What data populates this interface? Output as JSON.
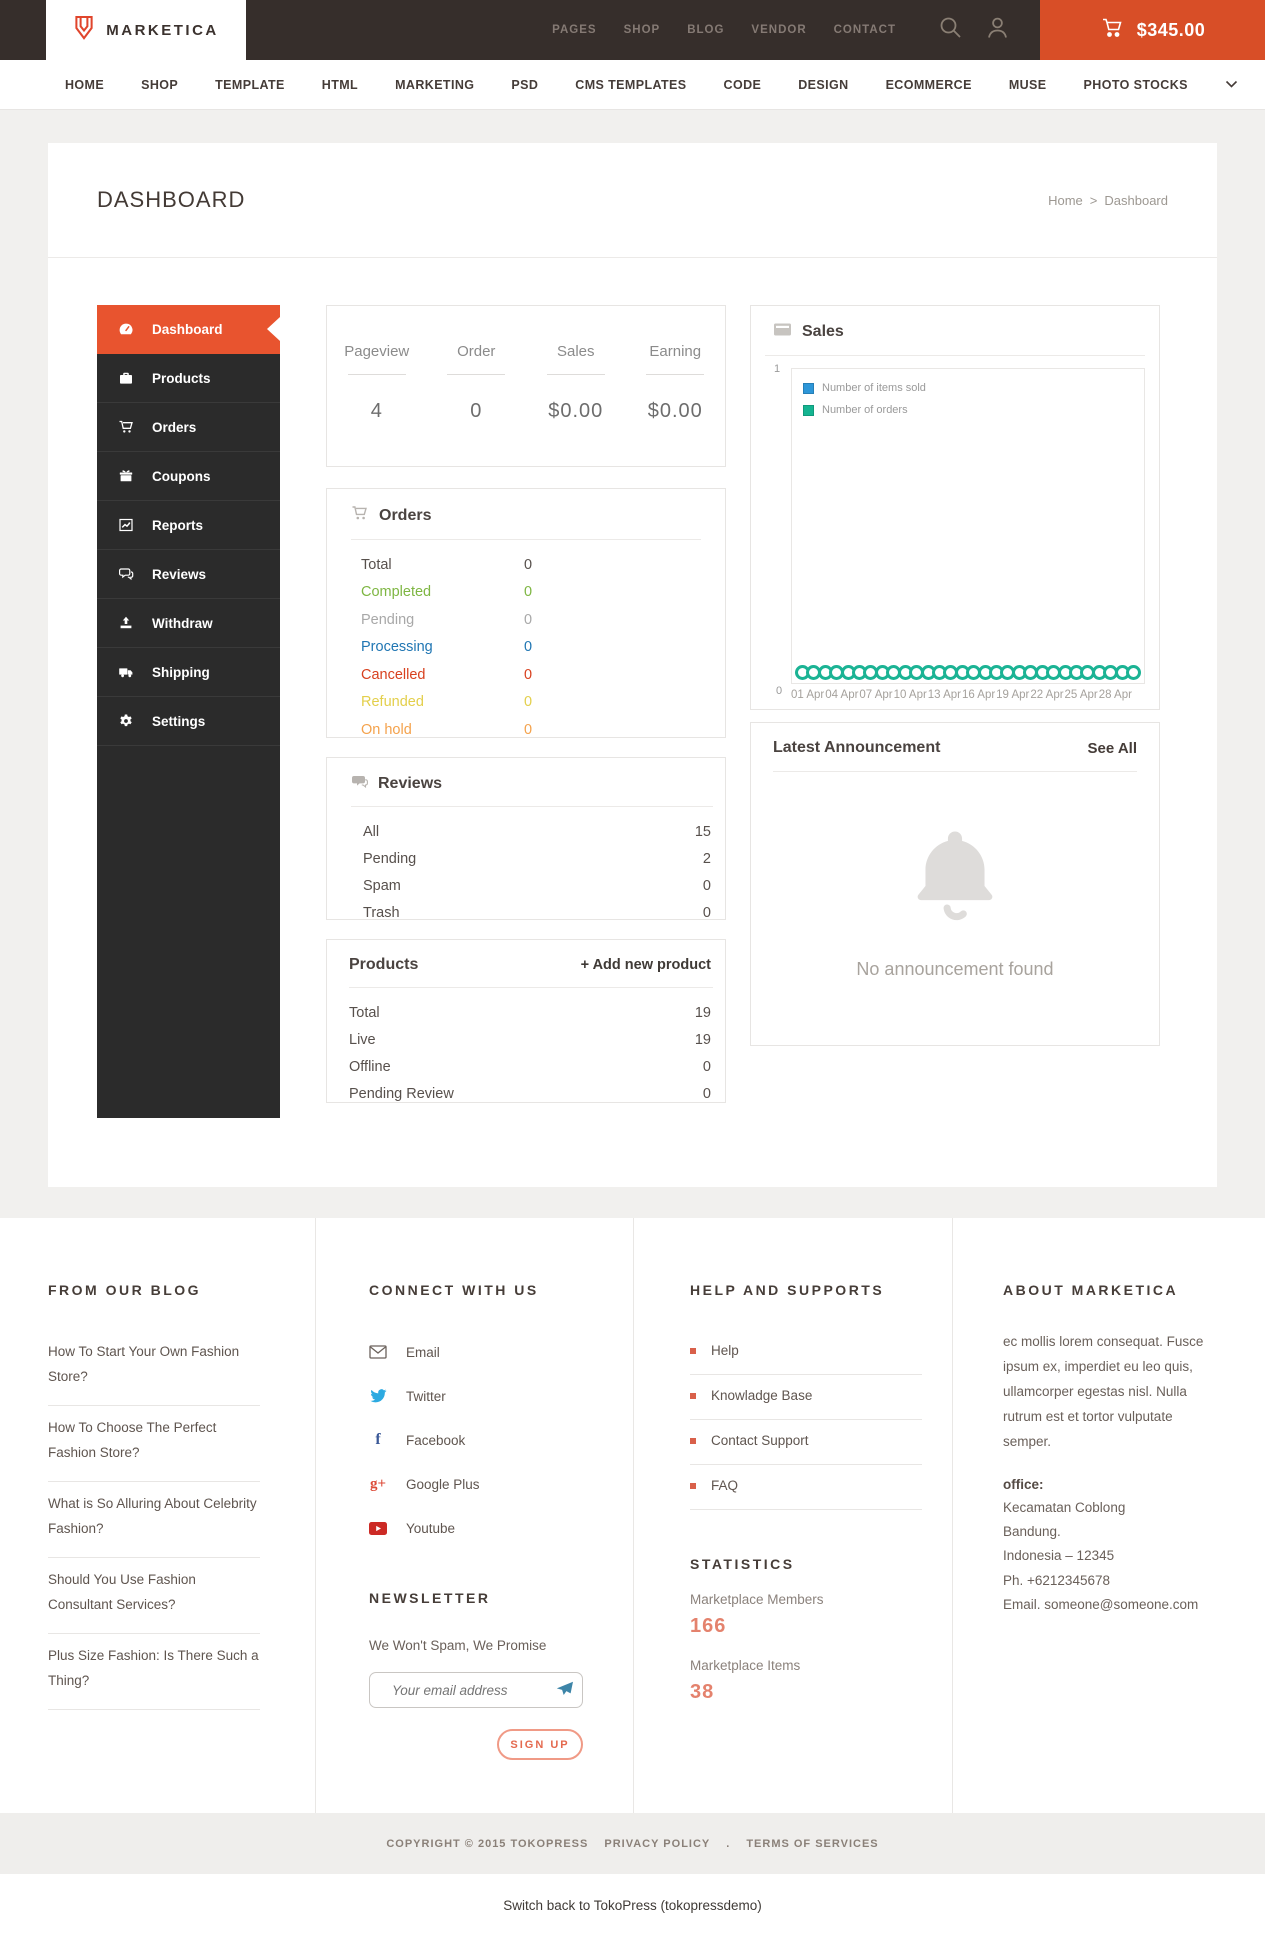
{
  "theme": {
    "header_bg": "#362e2b",
    "accent_orange": "#e8542f",
    "cart_red": "#d84e27",
    "sidebar_bg": "#2b2b2b",
    "page_bg": "#f1f0ee",
    "status_colors": {
      "total": "#57504c",
      "completed": "#7eb642",
      "pending": "#a8a8a8",
      "processing": "#2076b3",
      "cancelled": "#d8411f",
      "refunded": "#e3cf4b",
      "on_hold": "#f4a24c"
    },
    "legend_blue": "#2d96d8",
    "legend_teal": "#14b491",
    "salmon": "#e4826d"
  },
  "header": {
    "brand": "MARKETICA",
    "links": [
      {
        "label": "PAGES"
      },
      {
        "label": "SHOP"
      },
      {
        "label": "BLOG"
      },
      {
        "label": "VENDOR"
      },
      {
        "label": "CONTACT"
      }
    ],
    "cart_total": "$345.00"
  },
  "mainNav": {
    "items": [
      {
        "label": "HOME"
      },
      {
        "label": "SHOP"
      },
      {
        "label": "TEMPLATE"
      },
      {
        "label": "HTML"
      },
      {
        "label": "MARKETING"
      },
      {
        "label": "PSD"
      },
      {
        "label": "CMS TEMPLATES"
      },
      {
        "label": "CODE"
      },
      {
        "label": "DESIGN"
      },
      {
        "label": "ECOMMERCE"
      },
      {
        "label": "MUSE"
      },
      {
        "label": "PHOTO STOCKS"
      }
    ]
  },
  "page": {
    "title": "DASHBOARD",
    "breadcrumb": {
      "home": "Home",
      "separator": ">",
      "current": "Dashboard"
    }
  },
  "sidebar": {
    "items": [
      {
        "label": "Dashboard",
        "icon": "dashboard-icon",
        "active": true
      },
      {
        "label": "Products",
        "icon": "briefcase-icon"
      },
      {
        "label": "Orders",
        "icon": "cart-icon"
      },
      {
        "label": "Coupons",
        "icon": "gift-icon"
      },
      {
        "label": "Reports",
        "icon": "chart-icon"
      },
      {
        "label": "Reviews",
        "icon": "comments-icon"
      },
      {
        "label": "Withdraw",
        "icon": "upload-icon"
      },
      {
        "label": "Shipping",
        "icon": "truck-icon"
      },
      {
        "label": "Settings",
        "icon": "gear-icon"
      }
    ]
  },
  "stats": {
    "columns": [
      {
        "label": "Pageview",
        "value": "4"
      },
      {
        "label": "Order",
        "value": "0"
      },
      {
        "label": "Sales",
        "value": "$0.00"
      },
      {
        "label": "Earning",
        "value": "$0.00"
      }
    ]
  },
  "orders": {
    "title": "Orders",
    "rows": [
      {
        "label": "Total",
        "value": "0",
        "color": "#57504c"
      },
      {
        "label": "Completed",
        "value": "0",
        "color": "#7eb642"
      },
      {
        "label": "Pending",
        "value": "0",
        "color": "#a8a8a8"
      },
      {
        "label": "Processing",
        "value": "0",
        "color": "#2076b3"
      },
      {
        "label": "Cancelled",
        "value": "0",
        "color": "#d8411f"
      },
      {
        "label": "Refunded",
        "value": "0",
        "color": "#e3cf4b"
      },
      {
        "label": "On hold",
        "value": "0",
        "color": "#f4a24c"
      }
    ]
  },
  "reviews": {
    "title": "Reviews",
    "rows": [
      {
        "label": "All",
        "value": "15"
      },
      {
        "label": "Pending",
        "value": "2"
      },
      {
        "label": "Spam",
        "value": "0"
      },
      {
        "label": "Trash",
        "value": "0"
      }
    ]
  },
  "products": {
    "title": "Products",
    "add_new": "+ Add new product",
    "rows": [
      {
        "label": "Total",
        "value": "19"
      },
      {
        "label": "Live",
        "value": "19"
      },
      {
        "label": "Offline",
        "value": "0"
      },
      {
        "label": "Pending Review",
        "value": "0"
      }
    ]
  },
  "sales": {
    "title": "Sales"
  },
  "chart_data": {
    "type": "line",
    "title": "Sales",
    "xlabel": "",
    "ylabel": "",
    "ylim": [
      0,
      1
    ],
    "yticks": [
      "1",
      "0"
    ],
    "grid": false,
    "legend_position": "top-left",
    "x_tick_labels": [
      "01 Apr",
      "04 Apr",
      "07 Apr",
      "10 Apr",
      "13 Apr",
      "16 Apr",
      "19 Apr",
      "22 Apr",
      "25 Apr",
      "28 Apr"
    ],
    "series": [
      {
        "name": "Number of items sold",
        "color": "#2d96d8",
        "marker": "none",
        "values": [
          0,
          0,
          0,
          0,
          0,
          0,
          0,
          0,
          0,
          0,
          0,
          0,
          0,
          0,
          0,
          0,
          0,
          0,
          0,
          0,
          0,
          0,
          0,
          0,
          0,
          0,
          0,
          0,
          0,
          0
        ]
      },
      {
        "name": "Number of orders",
        "color": "#14b491",
        "marker": "circle",
        "values": [
          0,
          0,
          0,
          0,
          0,
          0,
          0,
          0,
          0,
          0,
          0,
          0,
          0,
          0,
          0,
          0,
          0,
          0,
          0,
          0,
          0,
          0,
          0,
          0,
          0,
          0,
          0,
          0,
          0,
          0
        ]
      }
    ]
  },
  "announcement": {
    "title": "Latest Announcement",
    "see_all": "See All",
    "empty": "No announcement found"
  },
  "footer": {
    "blog": {
      "title": "FROM OUR BLOG",
      "items": [
        {
          "label": "How To Start Your Own Fashion Store?"
        },
        {
          "label": "How To Choose The Perfect Fashion Store?"
        },
        {
          "label": "What is So Alluring About Celebrity Fashion?"
        },
        {
          "label": "Should You Use Fashion Consultant Services?"
        },
        {
          "label": "Plus Size Fashion: Is There Such a Thing?"
        }
      ]
    },
    "connect": {
      "title": "CONNECT WITH US",
      "items": [
        {
          "label": "Email",
          "icon": "email-icon"
        },
        {
          "label": "Twitter",
          "icon": "twitter-icon"
        },
        {
          "label": "Facebook",
          "icon": "facebook-icon"
        },
        {
          "label": "Google Plus",
          "icon": "google-plus-icon"
        },
        {
          "label": "Youtube",
          "icon": "youtube-icon"
        }
      ]
    },
    "newsletter": {
      "title": "NEWSLETTER",
      "promise": "We Won't Spam, We Promise",
      "placeholder": "Your email address",
      "signup": "SIGN UP"
    },
    "help": {
      "title": "HELP AND SUPPORTS",
      "items": [
        {
          "label": "Help"
        },
        {
          "label": "Knowladge Base"
        },
        {
          "label": "Contact Support"
        },
        {
          "label": "FAQ"
        }
      ]
    },
    "statistics": {
      "title": "STATISTICS",
      "members_label": "Marketplace Members",
      "members_value": "166",
      "items_label": "Marketplace Items",
      "items_value": "38"
    },
    "about": {
      "title": "ABOUT MARKETICA",
      "text": "ec mollis lorem consequat. Fusce ipsum ex, imperdiet eu leo quis, ullamcorper egestas nisl. Nulla rutrum est et tortor vulputate semper.",
      "office_label": "office:",
      "lines": [
        {
          "text": "Kecamatan Coblong"
        },
        {
          "text": "Bandung."
        },
        {
          "text": "Indonesia – 12345"
        },
        {
          "text": "Ph. +6212345678"
        },
        {
          "text": "Email. someone@someone.com"
        }
      ]
    }
  },
  "copyright": {
    "text": "COPYRIGHT © 2015 TOKOPRESS",
    "privacy": "PRIVACY POLICY",
    "dot": ".",
    "terms": "TERMS OF SERVICES"
  },
  "switch_bar": {
    "text": "Switch back to TokoPress (tokopressdemo)"
  }
}
